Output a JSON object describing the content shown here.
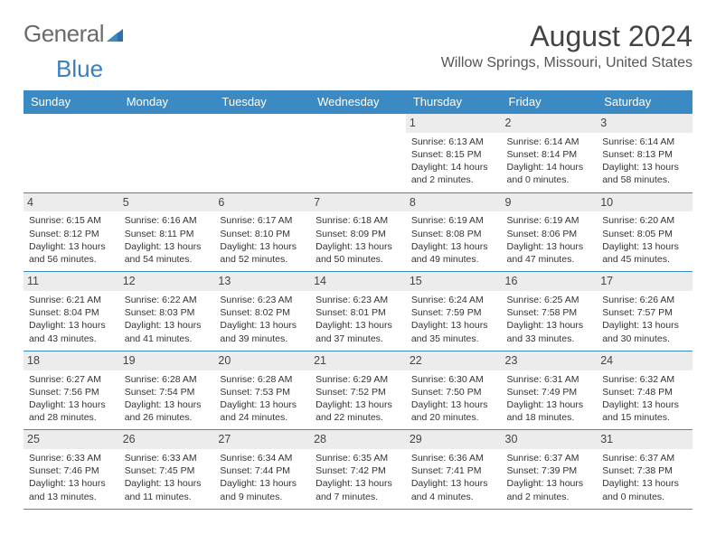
{
  "brand": {
    "part1": "General",
    "part2": "Blue"
  },
  "title": "August 2024",
  "location": "Willow Springs, Missouri, United States",
  "colors": {
    "header_bg": "#3b8ac4",
    "header_fg": "#ffffff",
    "cell_border": "#3b8ac4",
    "daynum_bg": "#ececec",
    "brand_gray": "#6b6b6b",
    "brand_blue": "#3b7fbf",
    "page_bg": "#ffffff"
  },
  "weekdays": [
    "Sunday",
    "Monday",
    "Tuesday",
    "Wednesday",
    "Thursday",
    "Friday",
    "Saturday"
  ],
  "weeks": [
    [
      null,
      null,
      null,
      null,
      {
        "d": "1",
        "sr": "Sunrise: 6:13 AM",
        "ss": "Sunset: 8:15 PM",
        "dl1": "Daylight: 14 hours",
        "dl2": "and 2 minutes."
      },
      {
        "d": "2",
        "sr": "Sunrise: 6:14 AM",
        "ss": "Sunset: 8:14 PM",
        "dl1": "Daylight: 14 hours",
        "dl2": "and 0 minutes."
      },
      {
        "d": "3",
        "sr": "Sunrise: 6:14 AM",
        "ss": "Sunset: 8:13 PM",
        "dl1": "Daylight: 13 hours",
        "dl2": "and 58 minutes."
      }
    ],
    [
      {
        "d": "4",
        "sr": "Sunrise: 6:15 AM",
        "ss": "Sunset: 8:12 PM",
        "dl1": "Daylight: 13 hours",
        "dl2": "and 56 minutes."
      },
      {
        "d": "5",
        "sr": "Sunrise: 6:16 AM",
        "ss": "Sunset: 8:11 PM",
        "dl1": "Daylight: 13 hours",
        "dl2": "and 54 minutes."
      },
      {
        "d": "6",
        "sr": "Sunrise: 6:17 AM",
        "ss": "Sunset: 8:10 PM",
        "dl1": "Daylight: 13 hours",
        "dl2": "and 52 minutes."
      },
      {
        "d": "7",
        "sr": "Sunrise: 6:18 AM",
        "ss": "Sunset: 8:09 PM",
        "dl1": "Daylight: 13 hours",
        "dl2": "and 50 minutes."
      },
      {
        "d": "8",
        "sr": "Sunrise: 6:19 AM",
        "ss": "Sunset: 8:08 PM",
        "dl1": "Daylight: 13 hours",
        "dl2": "and 49 minutes."
      },
      {
        "d": "9",
        "sr": "Sunrise: 6:19 AM",
        "ss": "Sunset: 8:06 PM",
        "dl1": "Daylight: 13 hours",
        "dl2": "and 47 minutes."
      },
      {
        "d": "10",
        "sr": "Sunrise: 6:20 AM",
        "ss": "Sunset: 8:05 PM",
        "dl1": "Daylight: 13 hours",
        "dl2": "and 45 minutes."
      }
    ],
    [
      {
        "d": "11",
        "sr": "Sunrise: 6:21 AM",
        "ss": "Sunset: 8:04 PM",
        "dl1": "Daylight: 13 hours",
        "dl2": "and 43 minutes."
      },
      {
        "d": "12",
        "sr": "Sunrise: 6:22 AM",
        "ss": "Sunset: 8:03 PM",
        "dl1": "Daylight: 13 hours",
        "dl2": "and 41 minutes."
      },
      {
        "d": "13",
        "sr": "Sunrise: 6:23 AM",
        "ss": "Sunset: 8:02 PM",
        "dl1": "Daylight: 13 hours",
        "dl2": "and 39 minutes."
      },
      {
        "d": "14",
        "sr": "Sunrise: 6:23 AM",
        "ss": "Sunset: 8:01 PM",
        "dl1": "Daylight: 13 hours",
        "dl2": "and 37 minutes."
      },
      {
        "d": "15",
        "sr": "Sunrise: 6:24 AM",
        "ss": "Sunset: 7:59 PM",
        "dl1": "Daylight: 13 hours",
        "dl2": "and 35 minutes."
      },
      {
        "d": "16",
        "sr": "Sunrise: 6:25 AM",
        "ss": "Sunset: 7:58 PM",
        "dl1": "Daylight: 13 hours",
        "dl2": "and 33 minutes."
      },
      {
        "d": "17",
        "sr": "Sunrise: 6:26 AM",
        "ss": "Sunset: 7:57 PM",
        "dl1": "Daylight: 13 hours",
        "dl2": "and 30 minutes."
      }
    ],
    [
      {
        "d": "18",
        "sr": "Sunrise: 6:27 AM",
        "ss": "Sunset: 7:56 PM",
        "dl1": "Daylight: 13 hours",
        "dl2": "and 28 minutes."
      },
      {
        "d": "19",
        "sr": "Sunrise: 6:28 AM",
        "ss": "Sunset: 7:54 PM",
        "dl1": "Daylight: 13 hours",
        "dl2": "and 26 minutes."
      },
      {
        "d": "20",
        "sr": "Sunrise: 6:28 AM",
        "ss": "Sunset: 7:53 PM",
        "dl1": "Daylight: 13 hours",
        "dl2": "and 24 minutes."
      },
      {
        "d": "21",
        "sr": "Sunrise: 6:29 AM",
        "ss": "Sunset: 7:52 PM",
        "dl1": "Daylight: 13 hours",
        "dl2": "and 22 minutes."
      },
      {
        "d": "22",
        "sr": "Sunrise: 6:30 AM",
        "ss": "Sunset: 7:50 PM",
        "dl1": "Daylight: 13 hours",
        "dl2": "and 20 minutes."
      },
      {
        "d": "23",
        "sr": "Sunrise: 6:31 AM",
        "ss": "Sunset: 7:49 PM",
        "dl1": "Daylight: 13 hours",
        "dl2": "and 18 minutes."
      },
      {
        "d": "24",
        "sr": "Sunrise: 6:32 AM",
        "ss": "Sunset: 7:48 PM",
        "dl1": "Daylight: 13 hours",
        "dl2": "and 15 minutes."
      }
    ],
    [
      {
        "d": "25",
        "sr": "Sunrise: 6:33 AM",
        "ss": "Sunset: 7:46 PM",
        "dl1": "Daylight: 13 hours",
        "dl2": "and 13 minutes."
      },
      {
        "d": "26",
        "sr": "Sunrise: 6:33 AM",
        "ss": "Sunset: 7:45 PM",
        "dl1": "Daylight: 13 hours",
        "dl2": "and 11 minutes."
      },
      {
        "d": "27",
        "sr": "Sunrise: 6:34 AM",
        "ss": "Sunset: 7:44 PM",
        "dl1": "Daylight: 13 hours",
        "dl2": "and 9 minutes."
      },
      {
        "d": "28",
        "sr": "Sunrise: 6:35 AM",
        "ss": "Sunset: 7:42 PM",
        "dl1": "Daylight: 13 hours",
        "dl2": "and 7 minutes."
      },
      {
        "d": "29",
        "sr": "Sunrise: 6:36 AM",
        "ss": "Sunset: 7:41 PM",
        "dl1": "Daylight: 13 hours",
        "dl2": "and 4 minutes."
      },
      {
        "d": "30",
        "sr": "Sunrise: 6:37 AM",
        "ss": "Sunset: 7:39 PM",
        "dl1": "Daylight: 13 hours",
        "dl2": "and 2 minutes."
      },
      {
        "d": "31",
        "sr": "Sunrise: 6:37 AM",
        "ss": "Sunset: 7:38 PM",
        "dl1": "Daylight: 13 hours",
        "dl2": "and 0 minutes."
      }
    ]
  ]
}
